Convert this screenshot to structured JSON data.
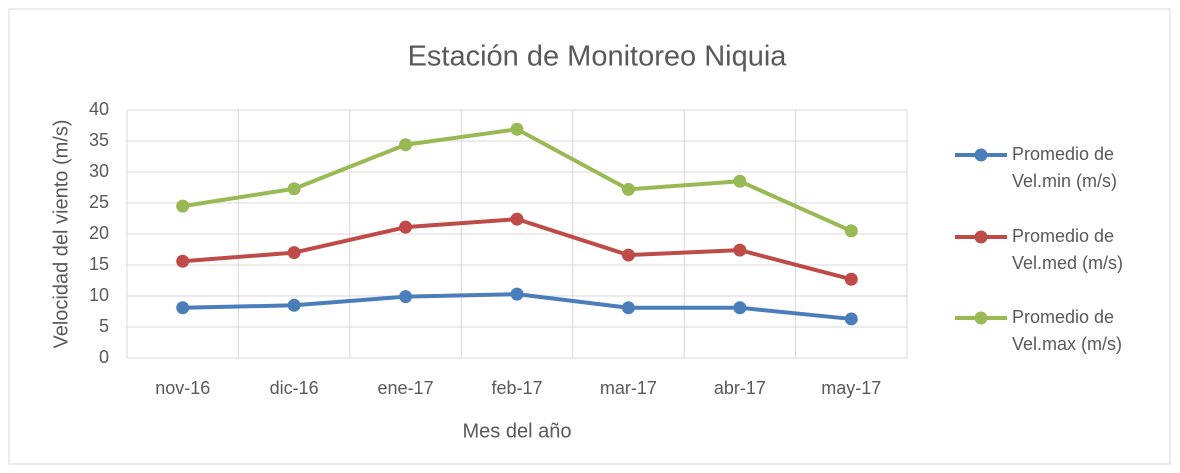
{
  "chart_data": {
    "type": "line",
    "title": "Estación de Monitoreo Niquia",
    "x_label": "Mes del año",
    "y_label": "Velocidad del viento (m/s)",
    "categories": [
      "nov-16",
      "dic-16",
      "ene-17",
      "feb-17",
      "mar-17",
      "abr-17",
      "may-17"
    ],
    "series": [
      {
        "name": "Promedio de Vel.min (m/s)",
        "color": "#4a7ebb",
        "values": [
          8.1,
          8.5,
          9.9,
          10.3,
          8.1,
          8.1,
          6.3
        ]
      },
      {
        "name": "Promedio de Vel.med (m/s)",
        "color": "#be4b48",
        "values": [
          15.6,
          17.0,
          21.1,
          22.4,
          16.6,
          17.4,
          12.7
        ]
      },
      {
        "name": "Promedio de Vel.max (m/s)",
        "color": "#98b954",
        "values": [
          24.5,
          27.3,
          34.4,
          36.9,
          27.2,
          28.5,
          20.5
        ]
      }
    ],
    "ylim": [
      0,
      40
    ],
    "yticks": [
      0,
      5,
      10,
      15,
      20,
      25,
      30,
      35,
      40
    ],
    "grid": true,
    "legend": "right"
  }
}
